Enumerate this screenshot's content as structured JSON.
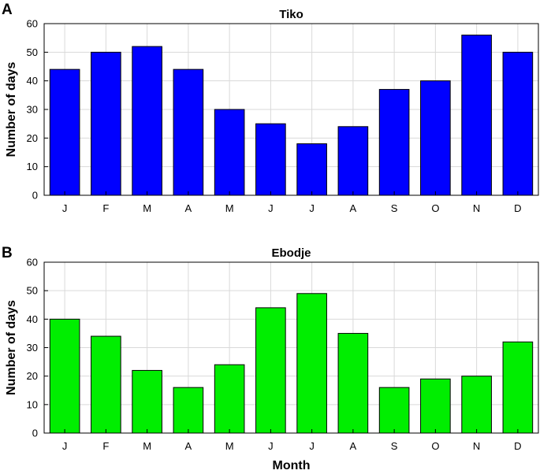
{
  "panels": [
    {
      "letter": "A"
    },
    {
      "letter": "B"
    }
  ],
  "chart_data": [
    {
      "type": "bar",
      "title": "Tiko",
      "xlabel": "",
      "ylabel": "Number of days",
      "categories": [
        "J",
        "F",
        "M",
        "A",
        "M",
        "J",
        "J",
        "A",
        "S",
        "O",
        "N",
        "D"
      ],
      "values": [
        44,
        50,
        52,
        44,
        30,
        25,
        18,
        24,
        37,
        40,
        56,
        50
      ],
      "ylim": [
        0,
        60
      ],
      "yticks": [
        0,
        10,
        20,
        30,
        40,
        50,
        60
      ],
      "bar_color": "#0000ff",
      "grid": true,
      "legend": "none"
    },
    {
      "type": "bar",
      "title": "Ebodje",
      "xlabel": "Month",
      "ylabel": "Number of days",
      "categories": [
        "J",
        "F",
        "M",
        "A",
        "M",
        "J",
        "J",
        "A",
        "S",
        "O",
        "N",
        "D"
      ],
      "values": [
        40,
        34,
        22,
        16,
        24,
        44,
        49,
        35,
        16,
        19,
        20,
        32
      ],
      "ylim": [
        0,
        60
      ],
      "yticks": [
        0,
        10,
        20,
        30,
        40,
        50,
        60
      ],
      "bar_color": "#00ee00",
      "grid": true,
      "legend": "none"
    }
  ]
}
